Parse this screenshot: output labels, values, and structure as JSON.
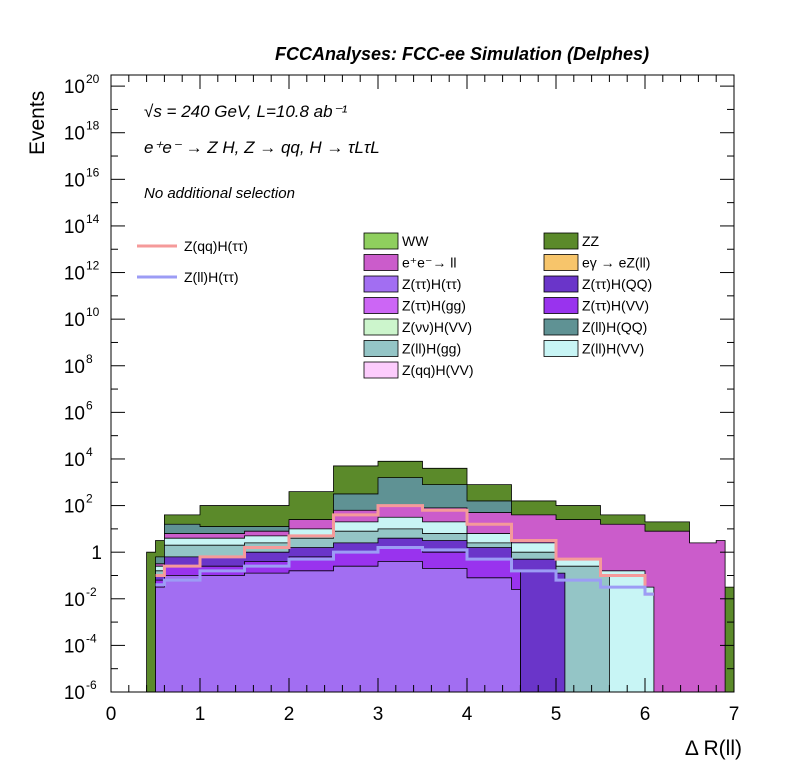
{
  "page": {
    "title": "FCCAnalyses: FCC-ee Simulation (Delphes)",
    "energy_label": "√s = 240 GeV, L=10.8 ab⁻¹",
    "process_label": "e⁺e⁻ → Z H, Z → qq, H → τLτL",
    "selection_label": "No additional selection"
  },
  "chart_data": {
    "type": "bar",
    "stacked": true,
    "log_y": true,
    "xlabel": "Δ R(ll)",
    "ylabel": "Events",
    "xlim": [
      0,
      7
    ],
    "ylim": [
      1e-06,
      3e+20
    ],
    "x_ticks": [
      "0",
      "1",
      "2",
      "3",
      "4",
      "5",
      "6",
      "7"
    ],
    "y_ticks": [
      {
        "base": "10",
        "exp": "20",
        "value": 1e+20
      },
      {
        "base": "10",
        "exp": "18",
        "value": 1e+18
      },
      {
        "base": "10",
        "exp": "16",
        "value": 1e+16
      },
      {
        "base": "10",
        "exp": "14",
        "value": 100000000000000.0
      },
      {
        "base": "10",
        "exp": "12",
        "value": 1000000000000.0
      },
      {
        "base": "10",
        "exp": "10",
        "value": 10000000000.0
      },
      {
        "base": "10",
        "exp": "8",
        "value": 100000000.0
      },
      {
        "base": "10",
        "exp": "6",
        "value": 1000000.0
      },
      {
        "base": "10",
        "exp": "4",
        "value": 10000.0
      },
      {
        "base": "10",
        "exp": "2",
        "value": 100.0
      },
      {
        "base": "1",
        "exp": "",
        "value": 1
      },
      {
        "base": "10",
        "exp": "-2",
        "value": 0.01
      },
      {
        "base": "10",
        "exp": "-4",
        "value": 0.0001
      },
      {
        "base": "10",
        "exp": "-6",
        "value": 1e-06
      }
    ],
    "stack_layers_top_to_bottom": [
      {
        "name": "ZZ",
        "color": "#5b8a2a",
        "points": [
          [
            0.4,
            0.0
          ],
          [
            0.5,
            0.5
          ],
          [
            0.6,
            1.6
          ],
          [
            1.0,
            2.0
          ],
          [
            2.0,
            2.6
          ],
          [
            2.5,
            3.7
          ],
          [
            3.0,
            3.9
          ],
          [
            3.5,
            3.6
          ],
          [
            4.0,
            2.9
          ],
          [
            4.5,
            2.2
          ],
          [
            5.0,
            2.0
          ],
          [
            5.5,
            1.6
          ],
          [
            6.0,
            1.3
          ],
          [
            6.5,
            0.4
          ],
          [
            6.9,
            -1.5
          ]
        ]
      },
      {
        "name": "Z(ll)H(QQ)",
        "color": "#5f9294",
        "points": [
          [
            0.5,
            -0.2
          ],
          [
            0.6,
            1.2
          ],
          [
            1.0,
            1.1
          ],
          [
            1.5,
            1.1
          ],
          [
            2.0,
            1.3
          ],
          [
            2.5,
            2.5
          ],
          [
            3.0,
            3.2
          ],
          [
            3.5,
            2.9
          ],
          [
            4.0,
            2.2
          ],
          [
            4.5,
            1.6
          ],
          [
            5.0,
            1.0
          ],
          [
            5.5,
            0.3
          ],
          [
            6.0,
            -0.4
          ],
          [
            6.5,
            -1.2
          ]
        ]
      },
      {
        "name": "e⁺e⁻→ ll",
        "color": "#cb5ccb",
        "points": [
          [
            0.5,
            -0.5
          ],
          [
            0.6,
            0.8
          ],
          [
            1.5,
            0.9
          ],
          [
            2.0,
            1.4
          ],
          [
            2.5,
            1.8
          ],
          [
            3.0,
            2.0
          ],
          [
            3.5,
            1.9
          ],
          [
            4.0,
            1.7
          ],
          [
            4.5,
            1.6
          ],
          [
            5.0,
            1.4
          ],
          [
            5.5,
            1.2
          ],
          [
            6.0,
            0.9
          ],
          [
            6.5,
            0.4
          ],
          [
            6.8,
            0.5
          ]
        ]
      },
      {
        "name": "Z(ll)H(VV)",
        "color": "#c8f5f5",
        "points": [
          [
            0.5,
            -0.6
          ],
          [
            0.6,
            0.6
          ],
          [
            1.5,
            0.7
          ],
          [
            2.0,
            1.0
          ],
          [
            2.5,
            1.3
          ],
          [
            3.0,
            1.5
          ],
          [
            3.5,
            1.3
          ],
          [
            4.0,
            0.8
          ],
          [
            4.5,
            0.4
          ],
          [
            5.0,
            -0.3
          ],
          [
            5.5,
            -0.8
          ],
          [
            6.0,
            -1.5
          ]
        ]
      },
      {
        "name": "Z(ll)H(gg)",
        "color": "#94c5c6",
        "points": [
          [
            0.5,
            -0.8
          ],
          [
            0.6,
            0.3
          ],
          [
            1.5,
            0.4
          ],
          [
            2.0,
            0.6
          ],
          [
            2.5,
            0.9
          ],
          [
            3.0,
            1.0
          ],
          [
            3.5,
            0.8
          ],
          [
            4.0,
            0.4
          ],
          [
            4.5,
            0.0
          ],
          [
            5.0,
            -0.6
          ],
          [
            5.5,
            -1.0
          ]
        ]
      },
      {
        "name": "Z(ττ)H(QQ)",
        "color": "#6a35c9",
        "points": [
          [
            0.5,
            -1.0
          ],
          [
            0.6,
            -0.2
          ],
          [
            1.5,
            0.0
          ],
          [
            2.0,
            0.2
          ],
          [
            2.5,
            0.4
          ],
          [
            3.0,
            0.6
          ],
          [
            3.5,
            0.5
          ],
          [
            4.0,
            0.2
          ],
          [
            4.5,
            -0.3
          ],
          [
            5.0,
            -0.9
          ]
        ]
      },
      {
        "name": "Z(ττ)H(VV)",
        "color": "#9933ee",
        "points": [
          [
            0.5,
            -1.2
          ],
          [
            0.6,
            -0.6
          ],
          [
            1.5,
            -0.4
          ],
          [
            2.0,
            -0.2
          ],
          [
            2.5,
            0.0
          ],
          [
            3.0,
            0.2
          ],
          [
            3.5,
            0.0
          ],
          [
            4.0,
            -0.3
          ],
          [
            4.5,
            -0.8
          ]
        ]
      },
      {
        "name": "Z(ττ)H(ττ)",
        "color": "#a26ef2",
        "points": [
          [
            0.5,
            -1.5
          ],
          [
            0.6,
            -1.0
          ],
          [
            1.5,
            -0.9
          ],
          [
            2.0,
            -0.8
          ],
          [
            2.5,
            -0.6
          ],
          [
            3.0,
            -0.4
          ],
          [
            3.5,
            -0.7
          ],
          [
            4.0,
            -1.1
          ],
          [
            4.5,
            -1.6
          ]
        ]
      }
    ],
    "overlay_lines": [
      {
        "name": "Z(qq)H(ττ)",
        "color": "#f59a9a",
        "points": [
          [
            0.5,
            -1.0
          ],
          [
            0.6,
            -0.6
          ],
          [
            1.0,
            -0.2
          ],
          [
            1.5,
            0.2
          ],
          [
            2.0,
            0.7
          ],
          [
            2.5,
            1.6
          ],
          [
            3.0,
            2.0
          ],
          [
            3.5,
            1.8
          ],
          [
            4.0,
            1.2
          ],
          [
            4.5,
            0.5
          ],
          [
            5.0,
            -0.3
          ],
          [
            5.5,
            -1.0
          ],
          [
            6.0,
            -1.8
          ]
        ]
      },
      {
        "name": "Z(ll)H(ττ)",
        "color": "#9c9cf5",
        "points": [
          [
            0.5,
            -1.4
          ],
          [
            0.6,
            -1.2
          ],
          [
            1.0,
            -0.8
          ],
          [
            1.5,
            -0.6
          ],
          [
            2.0,
            -0.3
          ],
          [
            2.5,
            0.0
          ],
          [
            3.0,
            0.2
          ],
          [
            3.5,
            0.1
          ],
          [
            4.0,
            -0.3
          ],
          [
            4.5,
            -0.8
          ],
          [
            5.0,
            -1.2
          ],
          [
            5.5,
            -1.5
          ],
          [
            6.0,
            -1.8
          ]
        ]
      }
    ],
    "legend_lines": [
      {
        "label": "Z(qq)H(ττ)",
        "color": "#f59a9a"
      },
      {
        "label": "Z(ll)H(ττ)",
        "color": "#9c9cf5"
      }
    ],
    "legend_boxes": [
      {
        "label": "WW",
        "color": "#8fcf5e"
      },
      {
        "label": "ZZ",
        "color": "#5b8a2a"
      },
      {
        "label": "e⁺e⁻→ ll",
        "color": "#cb5ccb"
      },
      {
        "label": "eγ → eZ(ll)",
        "color": "#f7c56b"
      },
      {
        "label": "Z(ττ)H(ττ)",
        "color": "#a26ef2"
      },
      {
        "label": "Z(ττ)H(QQ)",
        "color": "#6a35c9"
      },
      {
        "label": "Z(ττ)H(gg)",
        "color": "#cc66f5"
      },
      {
        "label": "Z(ττ)H(VV)",
        "color": "#9933ee"
      },
      {
        "label": "Z(νν)H(VV)",
        "color": "#ccf5cc"
      },
      {
        "label": "Z(ll)H(QQ)",
        "color": "#5f9294"
      },
      {
        "label": "Z(ll)H(gg)",
        "color": "#94c5c6"
      },
      {
        "label": "Z(ll)H(VV)",
        "color": "#c8f5f5"
      },
      {
        "label": "Z(qq)H(VV)",
        "color": "#fcccfc"
      }
    ]
  }
}
